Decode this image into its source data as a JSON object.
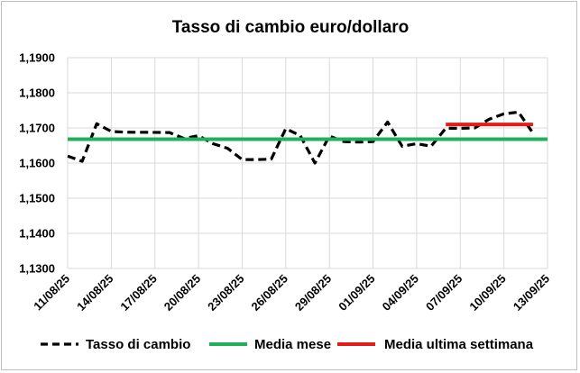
{
  "chart_data": {
    "type": "line",
    "title": "Tasso di cambio euro/dollaro",
    "xlabel": "",
    "ylabel": "",
    "ylim": [
      1.13,
      1.19
    ],
    "y_ticks": [
      "1,1300",
      "1,1400",
      "1,1500",
      "1,1600",
      "1,1700",
      "1,1800",
      "1,1900"
    ],
    "x_tick_labels": [
      "11/08/25",
      "14/08/25",
      "17/08/25",
      "20/08/25",
      "23/08/25",
      "26/08/25",
      "29/08/25",
      "01/09/25",
      "04/09/25",
      "07/09/25",
      "10/09/25",
      "13/09/25"
    ],
    "x_range": [
      "11/08/25",
      "13/09/25"
    ],
    "grid": true,
    "legend_position": "bottom",
    "series": [
      {
        "name": "Tasso di cambio",
        "style": "dashed",
        "color": "#000000",
        "points": [
          [
            "11/08/25",
            1.162
          ],
          [
            "12/08/25",
            1.1605
          ],
          [
            "13/08/25",
            1.1712
          ],
          [
            "14/08/25",
            1.169
          ],
          [
            "15/08/25",
            1.1688
          ],
          [
            "18/08/25",
            1.1687
          ],
          [
            "19/08/25",
            1.167
          ],
          [
            "20/08/25",
            1.1678
          ],
          [
            "21/08/25",
            1.1655
          ],
          [
            "22/08/25",
            1.1642
          ],
          [
            "23/08/25",
            1.161
          ],
          [
            "24/08/25",
            1.161
          ],
          [
            "25/08/25",
            1.1611
          ],
          [
            "26/08/25",
            1.1698
          ],
          [
            "27/08/25",
            1.1678
          ],
          [
            "28/08/25",
            1.16
          ],
          [
            "29/08/25",
            1.1677
          ],
          [
            "30/08/25",
            1.1661
          ],
          [
            "31/08/25",
            1.166
          ],
          [
            "01/09/25",
            1.1661
          ],
          [
            "02/09/25",
            1.1717
          ],
          [
            "03/09/25",
            1.1648
          ],
          [
            "04/09/25",
            1.1655
          ],
          [
            "05/09/25",
            1.1648
          ],
          [
            "06/09/25",
            1.1699
          ],
          [
            "07/09/25",
            1.1699
          ],
          [
            "08/09/25",
            1.17
          ],
          [
            "09/09/25",
            1.1725
          ],
          [
            "10/09/25",
            1.174
          ],
          [
            "11/09/25",
            1.1745
          ],
          [
            "12/09/25",
            1.1685
          ]
        ]
      },
      {
        "name": "Media mese",
        "style": "solid",
        "color": "#1fb05a",
        "points": [
          [
            "11/08/25",
            1.1668
          ],
          [
            "13/09/25",
            1.1668
          ]
        ]
      },
      {
        "name": "Media ultima settimana",
        "style": "solid",
        "color": "#e41b17",
        "points": [
          [
            "06/09/25",
            1.171
          ],
          [
            "12/09/25",
            1.171
          ]
        ]
      }
    ]
  }
}
